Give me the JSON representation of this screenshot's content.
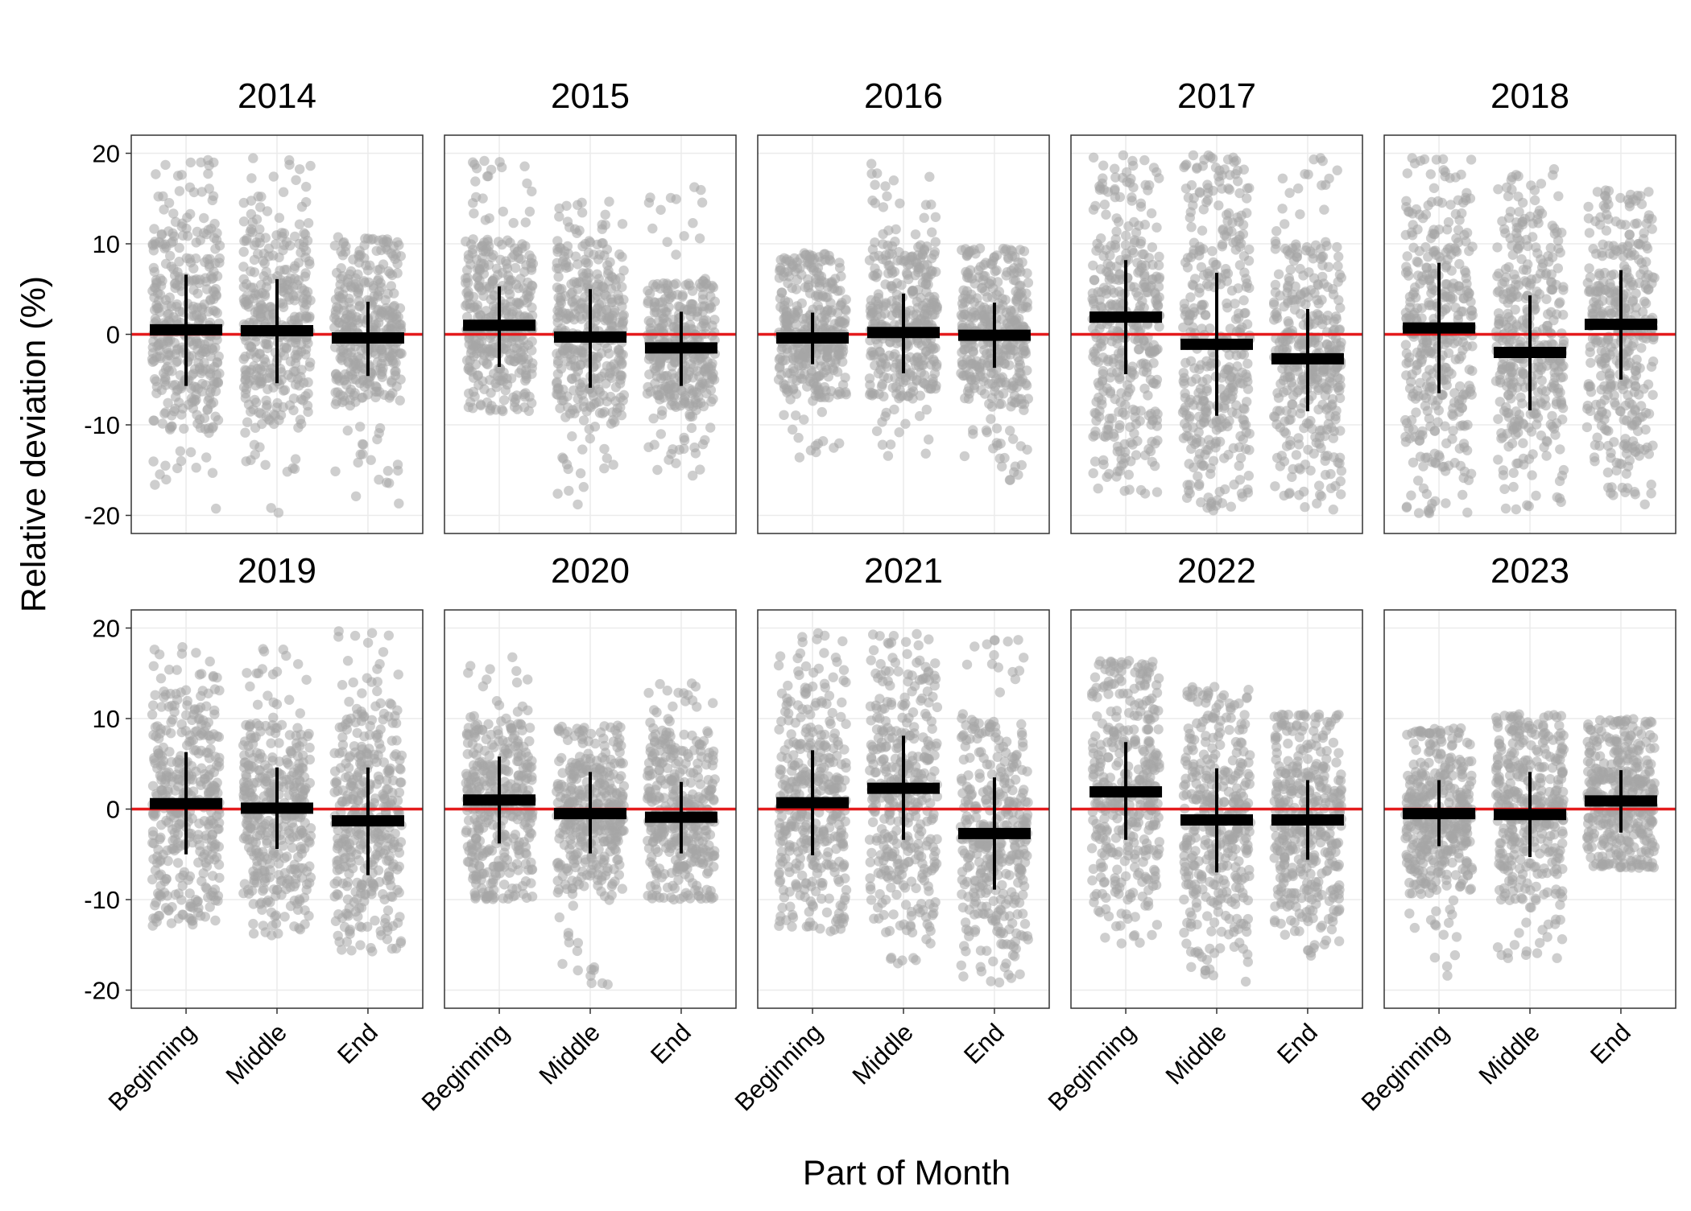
{
  "chart_data": {
    "type": "scatter",
    "subtype": "faceted jitter plot with mean and standard deviation markers",
    "xlabel": "Part of Month",
    "ylabel": "Relative deviation (%)",
    "categories": [
      "Beginning",
      "Middle",
      "End"
    ],
    "ylim": [
      -22,
      22
    ],
    "yticks": [
      -20,
      -10,
      0,
      10,
      20
    ],
    "grid": true,
    "reference_line": {
      "y": 0,
      "color": "#e41a1c"
    },
    "point_color": "#a6a6a6",
    "mean_marker_color": "#000000",
    "facets": [
      {
        "label": "2014",
        "groups": [
          {
            "category": "Beginning",
            "mean": 0.5,
            "sd_low": -5.7,
            "sd_high": 6.6,
            "range": [
              -19.5,
              19.5
            ],
            "core": [
              -10.5,
              12.5
            ]
          },
          {
            "category": "Middle",
            "mean": 0.4,
            "sd_low": -5.4,
            "sd_high": 6.1,
            "range": [
              -19.8,
              19.8
            ],
            "core": [
              -10.0,
              11.5
            ]
          },
          {
            "category": "End",
            "mean": -0.4,
            "sd_low": -4.6,
            "sd_high": 3.6,
            "range": [
              -19.0,
              11.0
            ],
            "core": [
              -8.0,
              9.5
            ]
          }
        ]
      },
      {
        "label": "2015",
        "groups": [
          {
            "category": "Beginning",
            "mean": 1.0,
            "sd_low": -3.6,
            "sd_high": 5.3,
            "range": [
              -8.5,
              19.5
            ],
            "core": [
              -7.5,
              10.5
            ]
          },
          {
            "category": "Middle",
            "mean": -0.3,
            "sd_low": -5.9,
            "sd_high": 5.0,
            "range": [
              -19.8,
              15.5
            ],
            "core": [
              -9.0,
              10.5
            ]
          },
          {
            "category": "End",
            "mean": -1.5,
            "sd_low": -5.7,
            "sd_high": 2.5,
            "range": [
              -16.0,
              19.5
            ],
            "core": [
              -8.0,
              6.0
            ]
          }
        ]
      },
      {
        "label": "2016",
        "groups": [
          {
            "category": "Beginning",
            "mean": -0.4,
            "sd_low": -3.3,
            "sd_high": 2.4,
            "range": [
              -14.0,
              9.0
            ],
            "core": [
              -7.0,
              8.0
            ]
          },
          {
            "category": "Middle",
            "mean": 0.2,
            "sd_low": -4.3,
            "sd_high": 4.5,
            "range": [
              -13.5,
              19.8
            ],
            "core": [
              -7.0,
              10.0
            ]
          },
          {
            "category": "End",
            "mean": -0.1,
            "sd_low": -3.7,
            "sd_high": 3.5,
            "range": [
              -16.5,
              9.5
            ],
            "core": [
              -8.0,
              9.0
            ]
          }
        ]
      },
      {
        "label": "2017",
        "groups": [
          {
            "category": "Beginning",
            "mean": 1.9,
            "sd_low": -4.4,
            "sd_high": 8.2,
            "range": [
              -18.0,
              19.8
            ],
            "core": [
              -13.0,
              17.0
            ]
          },
          {
            "category": "Middle",
            "mean": -1.1,
            "sd_low": -9.0,
            "sd_high": 6.8,
            "range": [
              -19.8,
              19.8
            ],
            "core": [
              -17.0,
              18.0
            ]
          },
          {
            "category": "End",
            "mean": -2.7,
            "sd_low": -8.5,
            "sd_high": 2.8,
            "range": [
              -19.5,
              19.5
            ],
            "core": [
              -15.0,
              10.0
            ]
          }
        ]
      },
      {
        "label": "2018",
        "groups": [
          {
            "category": "Beginning",
            "mean": 0.7,
            "sd_low": -6.5,
            "sd_high": 7.9,
            "range": [
              -19.8,
              19.8
            ],
            "core": [
              -15.0,
              15.0
            ]
          },
          {
            "category": "Middle",
            "mean": -2.0,
            "sd_low": -8.4,
            "sd_high": 4.3,
            "range": [
              -19.8,
              18.5
            ],
            "core": [
              -14.0,
              13.5
            ]
          },
          {
            "category": "End",
            "mean": 1.1,
            "sd_low": -5.0,
            "sd_high": 7.1,
            "range": [
              -19.8,
              16.0
            ],
            "core": [
              -14.0,
              14.0
            ]
          }
        ]
      },
      {
        "label": "2019",
        "groups": [
          {
            "category": "Beginning",
            "mean": 0.6,
            "sd_low": -5.0,
            "sd_high": 6.3,
            "range": [
              -13.0,
              18.0
            ],
            "core": [
              -11.0,
              13.0
            ]
          },
          {
            "category": "Middle",
            "mean": 0.1,
            "sd_low": -4.4,
            "sd_high": 4.6,
            "range": [
              -14.0,
              18.5
            ],
            "core": [
              -11.0,
              9.5
            ]
          },
          {
            "category": "End",
            "mean": -1.3,
            "sd_low": -7.3,
            "sd_high": 4.6,
            "range": [
              -16.0,
              20.0
            ],
            "core": [
              -13.0,
              12.0
            ]
          }
        ]
      },
      {
        "label": "2020",
        "groups": [
          {
            "category": "Beginning",
            "mean": 1.0,
            "sd_low": -3.8,
            "sd_high": 5.8,
            "range": [
              -10.0,
              18.0
            ],
            "core": [
              -9.0,
              10.0
            ]
          },
          {
            "category": "Middle",
            "mean": -0.5,
            "sd_low": -4.9,
            "sd_high": 4.1,
            "range": [
              -19.8,
              9.5
            ],
            "core": [
              -9.5,
              8.0
            ]
          },
          {
            "category": "End",
            "mean": -0.9,
            "sd_low": -4.9,
            "sd_high": 3.0,
            "range": [
              -10.0,
              14.0
            ],
            "core": [
              -9.5,
              8.5
            ]
          }
        ]
      },
      {
        "label": "2021",
        "groups": [
          {
            "category": "Beginning",
            "mean": 0.7,
            "sd_low": -5.1,
            "sd_high": 6.5,
            "range": [
              -13.5,
              19.8
            ],
            "core": [
              -12.0,
              14.0
            ]
          },
          {
            "category": "Middle",
            "mean": 2.3,
            "sd_low": -3.4,
            "sd_high": 8.1,
            "range": [
              -17.5,
              19.5
            ],
            "core": [
              -12.0,
              16.0
            ]
          },
          {
            "category": "End",
            "mean": -2.7,
            "sd_low": -8.9,
            "sd_high": 3.5,
            "range": [
              -19.5,
              19.8
            ],
            "core": [
              -15.0,
              9.5
            ]
          }
        ]
      },
      {
        "label": "2022",
        "groups": [
          {
            "category": "Beginning",
            "mean": 1.9,
            "sd_low": -3.4,
            "sd_high": 7.4,
            "range": [
              -15.0,
              16.5
            ],
            "core": [
              -10.0,
              15.5
            ]
          },
          {
            "category": "Middle",
            "mean": -1.2,
            "sd_low": -7.0,
            "sd_high": 4.5,
            "range": [
              -19.8,
              13.5
            ],
            "core": [
              -14.0,
              12.0
            ]
          },
          {
            "category": "End",
            "mean": -1.2,
            "sd_low": -5.6,
            "sd_high": 3.2,
            "range": [
              -16.5,
              10.5
            ],
            "core": [
              -12.0,
              10.0
            ]
          }
        ]
      },
      {
        "label": "2023",
        "groups": [
          {
            "category": "Beginning",
            "mean": -0.5,
            "sd_low": -4.1,
            "sd_high": 3.2,
            "range": [
              -18.5,
              9.0
            ],
            "core": [
              -9.5,
              8.0
            ]
          },
          {
            "category": "Middle",
            "mean": -0.6,
            "sd_low": -5.3,
            "sd_high": 4.1,
            "range": [
              -17.5,
              10.5
            ],
            "core": [
              -10.0,
              9.5
            ]
          },
          {
            "category": "End",
            "mean": 0.9,
            "sd_low": -2.6,
            "sd_high": 4.3,
            "range": [
              -6.5,
              10.0
            ],
            "core": [
              -6.0,
              9.5
            ]
          }
        ]
      }
    ]
  }
}
